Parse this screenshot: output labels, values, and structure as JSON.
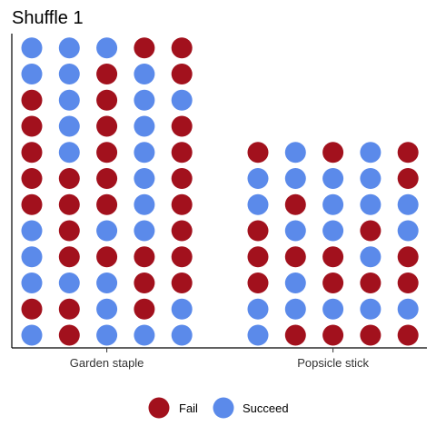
{
  "chart_data": {
    "type": "dot-matrix",
    "title": "Shuffle 1",
    "xlabel": "",
    "ylabel": "",
    "categories": [
      "Garden staple",
      "Popsicle stick"
    ],
    "legend_position": "bottom",
    "grid": false,
    "series": [
      {
        "name": "Fail",
        "color": "#A2111D"
      },
      {
        "name": "Succeed",
        "color": "#5B8AEA"
      }
    ],
    "groups": [
      {
        "category": "Garden staple",
        "columns": 5,
        "rows_top_to_bottom": [
          [
            "Succeed",
            "Succeed",
            "Succeed",
            "Fail",
            "Fail"
          ],
          [
            "Succeed",
            "Succeed",
            "Fail",
            "Succeed",
            "Fail"
          ],
          [
            "Fail",
            "Succeed",
            "Fail",
            "Succeed",
            "Succeed"
          ],
          [
            "Fail",
            "Succeed",
            "Fail",
            "Succeed",
            "Fail"
          ],
          [
            "Fail",
            "Succeed",
            "Fail",
            "Succeed",
            "Fail"
          ],
          [
            "Fail",
            "Fail",
            "Fail",
            "Succeed",
            "Fail"
          ],
          [
            "Fail",
            "Fail",
            "Fail",
            "Succeed",
            "Fail"
          ],
          [
            "Succeed",
            "Fail",
            "Succeed",
            "Succeed",
            "Fail"
          ],
          [
            "Succeed",
            "Fail",
            "Fail",
            "Fail",
            "Fail"
          ],
          [
            "Succeed",
            "Succeed",
            "Succeed",
            "Fail",
            "Fail"
          ],
          [
            "Fail",
            "Fail",
            "Succeed",
            "Fail",
            "Succeed"
          ],
          [
            "Succeed",
            "Fail",
            "Succeed",
            "Succeed",
            "Succeed"
          ]
        ]
      },
      {
        "category": "Popsicle stick",
        "columns": 5,
        "rows_top_to_bottom": [
          [
            "Fail",
            "Succeed",
            "Fail",
            "Succeed",
            "Fail"
          ],
          [
            "Succeed",
            "Succeed",
            "Succeed",
            "Succeed",
            "Fail"
          ],
          [
            "Succeed",
            "Fail",
            "Succeed",
            "Succeed",
            "Succeed"
          ],
          [
            "Fail",
            "Succeed",
            "Succeed",
            "Fail",
            "Succeed"
          ],
          [
            "Fail",
            "Fail",
            "Fail",
            "Succeed",
            "Fail"
          ],
          [
            "Fail",
            "Succeed",
            "Fail",
            "Fail",
            "Fail"
          ],
          [
            "Succeed",
            "Succeed",
            "Succeed",
            "Succeed",
            "Succeed"
          ],
          [
            "Succeed",
            "Fail",
            "Fail",
            "Fail",
            "Fail"
          ]
        ]
      }
    ]
  }
}
